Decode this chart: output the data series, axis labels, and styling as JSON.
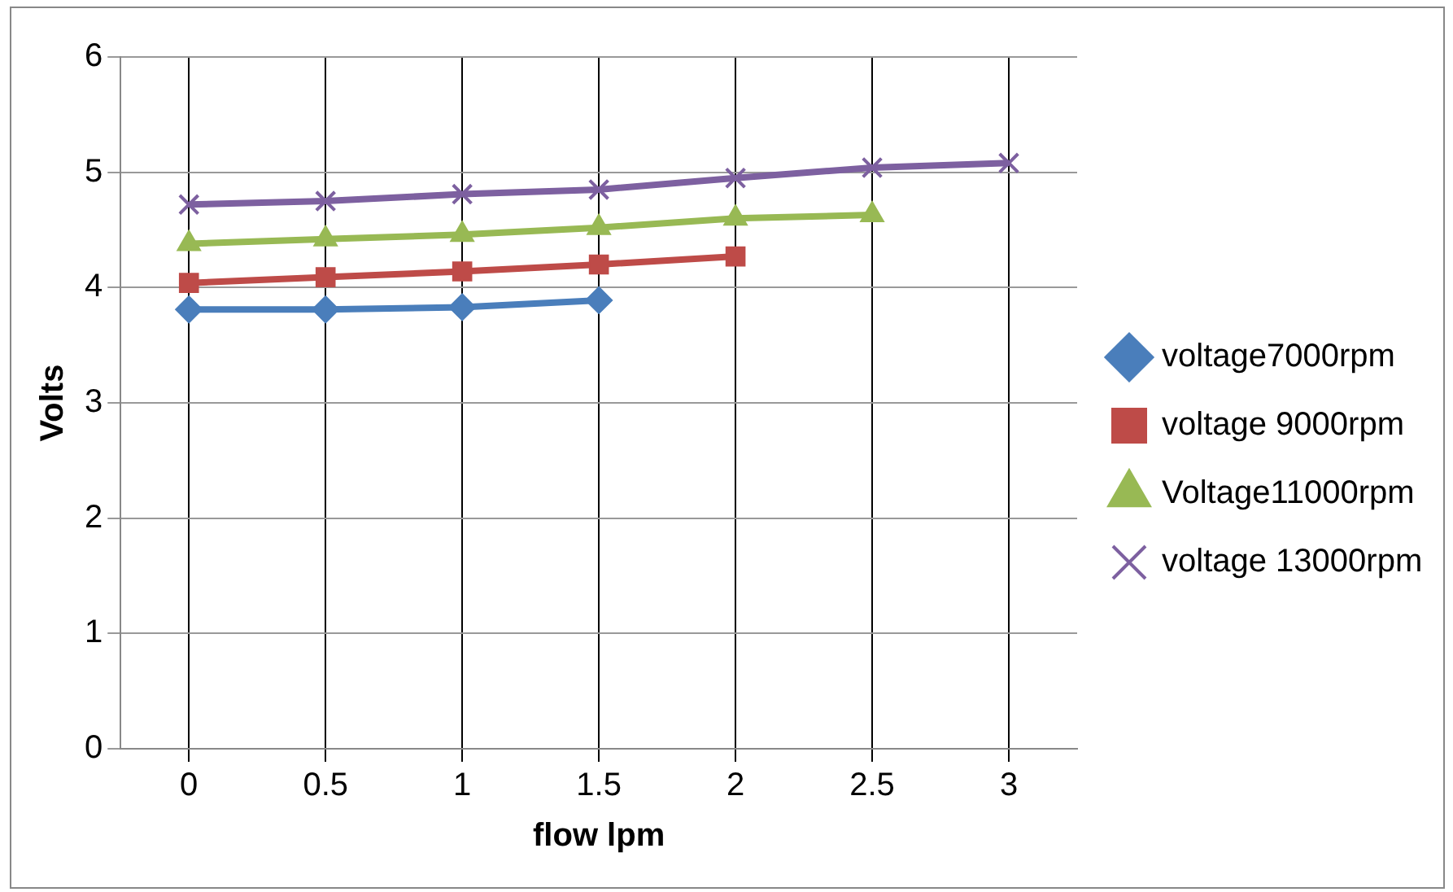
{
  "chart_data": {
    "type": "line",
    "xlabel": "flow lpm",
    "ylabel": "Volts",
    "categories": [
      "0",
      "0.5",
      "1",
      "1.5",
      "2",
      "2.5",
      "3"
    ],
    "series": [
      {
        "name": "voltage7000rpm",
        "color": "#4a7ebb",
        "marker": "diamond",
        "values": [
          3.81,
          3.81,
          3.83,
          3.89,
          null,
          null,
          null
        ]
      },
      {
        "name": "voltage 9000rpm",
        "color": "#be4b48",
        "marker": "square",
        "values": [
          4.04,
          4.09,
          4.14,
          4.2,
          4.27,
          null,
          null
        ]
      },
      {
        "name": "Voltage11000rpm",
        "color": "#98b954",
        "marker": "triangle",
        "values": [
          4.38,
          4.42,
          4.46,
          4.52,
          4.6,
          4.63,
          null
        ]
      },
      {
        "name": "voltage 13000rpm",
        "color": "#7d60a0",
        "marker": "cross",
        "values": [
          4.72,
          4.75,
          4.81,
          4.85,
          4.95,
          5.04,
          5.08
        ]
      }
    ],
    "ylim": [
      0,
      6
    ],
    "yticks": [
      0,
      1,
      2,
      3,
      4,
      5,
      6
    ],
    "grid": true,
    "legend": "right"
  }
}
